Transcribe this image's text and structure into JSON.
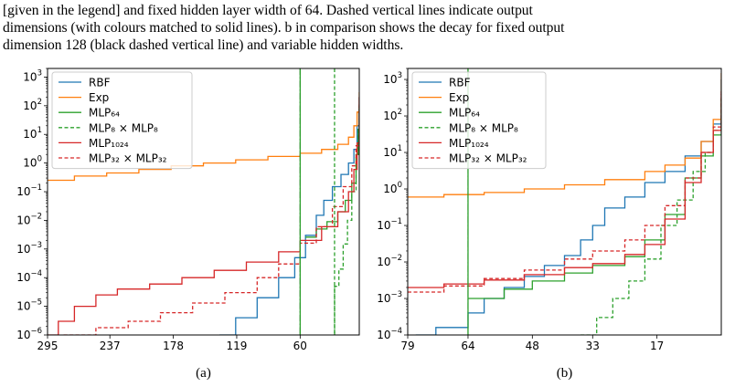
{
  "caption": {
    "line1": "[given in the legend] and fixed hidden layer width of 64.  Dashed vertical lines indicate output",
    "line2": "dimensions (with colours matched to solid lines). b in comparison shows the decay for fixed output",
    "line3": "dimension 128 (black dashed vertical line) and variable hidden widths."
  },
  "colors": {
    "blue": "#1f77b4",
    "orange": "#ff7f0e",
    "green": "#2ca02c",
    "red": "#d62728"
  },
  "chart_data": [
    {
      "type": "line",
      "panel_label": "(a)",
      "y_scale": "log",
      "ylim": [
        1e-06,
        2000
      ],
      "xlim": [
        295,
        5
      ],
      "x_ticks": [
        "295",
        "237",
        "178",
        "119",
        "60"
      ],
      "x_tick_values": [
        295,
        237,
        178,
        119,
        60
      ],
      "y_ticks": [
        "10^-6",
        "10^-5",
        "10^-4",
        "10^-3",
        "10^-2",
        "10^-1",
        "10^0",
        "10^1",
        "10^2",
        "10^3"
      ],
      "vlines": [
        {
          "x": 60,
          "color": "black",
          "style": "dashdot"
        },
        {
          "x": 60,
          "color": "green",
          "style": "solid"
        },
        {
          "x": 28,
          "color": "green",
          "style": "dashed"
        }
      ],
      "legend_position": "upper-left",
      "series": [
        {
          "name": "RBF",
          "color": "blue",
          "dash": false,
          "points": [
            [
              135,
              1e-06
            ],
            [
              120,
              4e-06
            ],
            [
              100,
              2e-05
            ],
            [
              80,
              0.0001
            ],
            [
              65,
              0.0005
            ],
            [
              55,
              0.003
            ],
            [
              45,
              0.015
            ],
            [
              38,
              0.05
            ],
            [
              30,
              0.15
            ],
            [
              22,
              0.4
            ],
            [
              15,
              1
            ],
            [
              10,
              3
            ],
            [
              7,
              20
            ],
            [
              5,
              200
            ]
          ]
        },
        {
          "name": "Exp",
          "color": "orange",
          "dash": false,
          "points": [
            [
              295,
              0.25
            ],
            [
              270,
              0.35
            ],
            [
              240,
              0.45
            ],
            [
              210,
              0.6
            ],
            [
              180,
              0.8
            ],
            [
              150,
              1.0
            ],
            [
              120,
              1.3
            ],
            [
              90,
              1.7
            ],
            [
              60,
              2.2
            ],
            [
              40,
              3
            ],
            [
              25,
              4.5
            ],
            [
              15,
              8
            ],
            [
              10,
              20
            ],
            [
              7,
              60
            ],
            [
              5,
              300
            ]
          ]
        },
        {
          "name": "MLP₆₄",
          "color": "green",
          "dash": false,
          "points": [
            [
              55,
              0.0026
            ],
            [
              45,
              0.005
            ],
            [
              35,
              0.009
            ],
            [
              25,
              0.02
            ],
            [
              18,
              0.05
            ],
            [
              12,
              0.2
            ],
            [
              8,
              2
            ],
            [
              6,
              15
            ],
            [
              5,
              100
            ]
          ]
        },
        {
          "name": "MLP₈ × MLP₈",
          "color": "green",
          "dash": true,
          "points": [
            [
              28,
              1e-06
            ],
            [
              28,
              5e-05
            ],
            [
              24,
              0.0002
            ],
            [
              20,
              0.0015
            ],
            [
              16,
              0.01
            ],
            [
              12,
              0.1
            ],
            [
              8,
              2
            ],
            [
              6,
              15
            ],
            [
              5,
              80
            ]
          ]
        },
        {
          "name": "MLP₁₀₂₄",
          "color": "red",
          "dash": false,
          "points": [
            [
              295,
              1e-06
            ],
            [
              285,
              3e-06
            ],
            [
              270,
              1e-05
            ],
            [
              250,
              2.5e-05
            ],
            [
              230,
              4e-05
            ],
            [
              200,
              6e-05
            ],
            [
              170,
              0.0001
            ],
            [
              140,
              0.00018
            ],
            [
              110,
              0.00035
            ],
            [
              80,
              0.0008
            ],
            [
              60,
              0.002
            ],
            [
              40,
              0.006
            ],
            [
              25,
              0.02
            ],
            [
              15,
              0.1
            ],
            [
              10,
              0.6
            ],
            [
              7,
              5
            ],
            [
              5,
              200
            ]
          ]
        },
        {
          "name": "MLP₃₂ × MLP₃₂",
          "color": "red",
          "dash": true,
          "points": [
            [
              280,
              1e-06
            ],
            [
              250,
              1.8e-06
            ],
            [
              220,
              3e-06
            ],
            [
              190,
              6e-06
            ],
            [
              160,
              1.3e-05
            ],
            [
              130,
              3e-05
            ],
            [
              100,
              0.0001
            ],
            [
              80,
              0.0003
            ],
            [
              60,
              0.0016
            ],
            [
              45,
              0.006
            ],
            [
              30,
              0.03
            ],
            [
              20,
              0.15
            ],
            [
              12,
              0.8
            ],
            [
              8,
              4
            ],
            [
              5,
              120
            ]
          ]
        }
      ]
    },
    {
      "type": "line",
      "panel_label": "(b)",
      "y_scale": "log",
      "ylim": [
        0.0001,
        2000
      ],
      "xlim": [
        79,
        1
      ],
      "x_ticks": [
        "79",
        "64",
        "48",
        "33",
        "17"
      ],
      "x_tick_values": [
        79,
        64,
        48,
        33,
        17
      ],
      "y_ticks": [
        "10^-4",
        "10^-3",
        "10^-2",
        "10^-1",
        "10^0",
        "10^1",
        "10^2",
        "10^3"
      ],
      "vlines": [
        {
          "x": 64,
          "color": "black",
          "style": "dashdot"
        },
        {
          "x": 64,
          "color": "green",
          "style": "solid"
        }
      ],
      "legend_position": "upper-left",
      "series": [
        {
          "name": "RBF",
          "color": "blue",
          "dash": false,
          "points": [
            [
              77,
              0.0001
            ],
            [
              72,
              0.00016
            ],
            [
              64,
              0.0004
            ],
            [
              60,
              0.001
            ],
            [
              55,
              0.002
            ],
            [
              50,
              0.004
            ],
            [
              45,
              0.008
            ],
            [
              40,
              0.015
            ],
            [
              36,
              0.04
            ],
            [
              33,
              0.1
            ],
            [
              30,
              0.3
            ],
            [
              25,
              0.6
            ],
            [
              20,
              1.5
            ],
            [
              15,
              3
            ],
            [
              10,
              8
            ],
            [
              6,
              20
            ],
            [
              3,
              60
            ],
            [
              1,
              1000
            ]
          ]
        },
        {
          "name": "Exp",
          "color": "orange",
          "dash": false,
          "points": [
            [
              79,
              0.6
            ],
            [
              70,
              0.7
            ],
            [
              60,
              0.8
            ],
            [
              50,
              1.0
            ],
            [
              40,
              1.3
            ],
            [
              30,
              1.8
            ],
            [
              20,
              3
            ],
            [
              15,
              4.5
            ],
            [
              10,
              7
            ],
            [
              6,
              20
            ],
            [
              3,
              80
            ],
            [
              1,
              1500
            ]
          ]
        },
        {
          "name": "MLP₆₄",
          "color": "green",
          "dash": false,
          "points": [
            [
              64,
              0.001
            ],
            [
              55,
              0.0018
            ],
            [
              48,
              0.003
            ],
            [
              40,
              0.005
            ],
            [
              33,
              0.008
            ],
            [
              25,
              0.014
            ],
            [
              20,
              0.04
            ],
            [
              15,
              0.2
            ],
            [
              10,
              2
            ],
            [
              6,
              8
            ],
            [
              3,
              30
            ],
            [
              1,
              300
            ]
          ]
        },
        {
          "name": "MLP₈ × MLP₈",
          "color": "green",
          "dash": true,
          "points": [
            [
              36,
              0.0001
            ],
            [
              32,
              0.0003
            ],
            [
              28,
              0.001
            ],
            [
              24,
              0.003
            ],
            [
              20,
              0.012
            ],
            [
              16,
              0.1
            ],
            [
              12,
              0.5
            ],
            [
              8,
              3
            ],
            [
              5,
              10
            ],
            [
              3,
              40
            ],
            [
              1,
              300
            ]
          ]
        },
        {
          "name": "MLP₁₀₂₄",
          "color": "red",
          "dash": false,
          "points": [
            [
              79,
              0.002
            ],
            [
              70,
              0.0025
            ],
            [
              60,
              0.0032
            ],
            [
              50,
              0.0045
            ],
            [
              40,
              0.007
            ],
            [
              33,
              0.009
            ],
            [
              25,
              0.016
            ],
            [
              20,
              0.03
            ],
            [
              15,
              0.15
            ],
            [
              10,
              1.5
            ],
            [
              6,
              10
            ],
            [
              3,
              40
            ],
            [
              1,
              400
            ]
          ]
        },
        {
          "name": "MLP₃₂ × MLP₃₂",
          "color": "red",
          "dash": true,
          "points": [
            [
              79,
              0.0015
            ],
            [
              70,
              0.0022
            ],
            [
              60,
              0.0035
            ],
            [
              50,
              0.006
            ],
            [
              40,
              0.012
            ],
            [
              33,
              0.02
            ],
            [
              25,
              0.04
            ],
            [
              20,
              0.1
            ],
            [
              15,
              0.35
            ],
            [
              10,
              2
            ],
            [
              6,
              10
            ],
            [
              3,
              50
            ],
            [
              1,
              500
            ]
          ]
        }
      ]
    }
  ]
}
